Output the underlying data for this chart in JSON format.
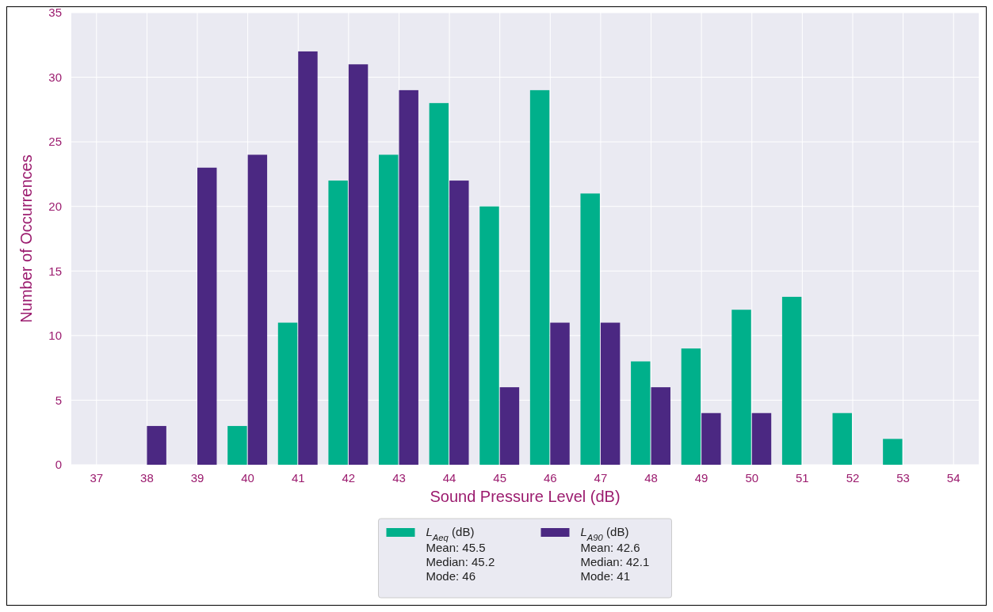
{
  "chart_data": {
    "type": "bar",
    "xlabel": "Sound Pressure Level (dB)",
    "ylabel": "Number of Occurrences",
    "categories": [
      "37",
      "38",
      "39",
      "40",
      "41",
      "42",
      "43",
      "44",
      "45",
      "46",
      "47",
      "48",
      "49",
      "50",
      "51",
      "52",
      "53",
      "54"
    ],
    "series": [
      {
        "name": "L$_{Aeq}$ (dB)",
        "color": "#00b08b",
        "values": [
          null,
          null,
          null,
          3,
          11,
          22,
          24,
          28,
          20,
          29,
          21,
          8,
          9,
          12,
          13,
          4,
          2,
          null
        ]
      },
      {
        "name": "L$_{A90}$ (dB)",
        "color": "#4b2882",
        "values": [
          null,
          3,
          23,
          24,
          32,
          31,
          29,
          22,
          6,
          11,
          11,
          6,
          4,
          4,
          null,
          null,
          null,
          null
        ]
      }
    ],
    "ylim": [
      0,
      35
    ],
    "yticks": [
      0,
      5,
      10,
      15,
      20,
      25,
      30,
      35
    ],
    "grid": true,
    "legend": "bottom",
    "annotations": [
      "Mean: 45.5",
      "Median: 45.2",
      "Mode: 46",
      "Mean: 42.6",
      "Median: 42.1",
      "Mode: 41"
    ]
  }
}
